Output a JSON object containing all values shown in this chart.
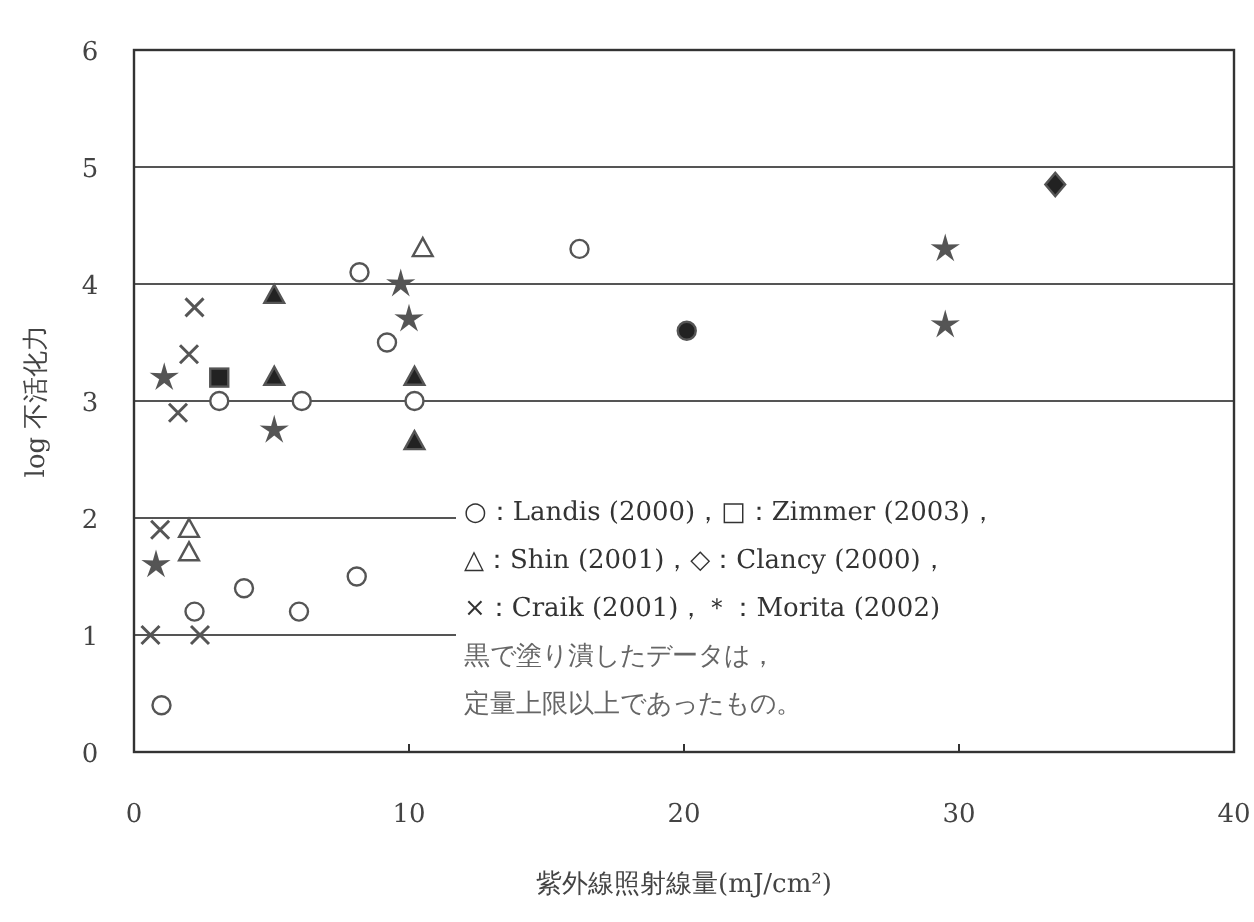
{
  "chart_data": {
    "type": "scatter",
    "xlabel": "紫外線照射線量(mJ/cm²)",
    "ylabel": "log 不活化力",
    "xlim": [
      0,
      40
    ],
    "xticks": [
      0,
      10,
      20,
      30,
      40
    ],
    "ylim": [
      0,
      6
    ],
    "yticks": [
      0,
      1,
      2,
      3,
      4,
      5,
      6
    ],
    "grid": "y",
    "series": [
      {
        "marker": "circle",
        "color": "#ffffff",
        "x": [
          1,
          4,
          6,
          8.1,
          2.2,
          3.1,
          6.1,
          8.2,
          9.2,
          10.2,
          16.2
        ],
        "values": [
          0.4,
          1.4,
          1.2,
          1.5,
          1.2,
          3.0,
          3.0,
          4.1,
          3.5,
          3.0,
          4.3
        ]
      },
      {
        "marker": "circle",
        "color": "#222222",
        "x": [
          20.1
        ],
        "values": [
          3.6
        ]
      },
      {
        "marker": "square",
        "color": "#222222",
        "x": [
          3.1
        ],
        "values": [
          3.2
        ]
      },
      {
        "marker": "triangle",
        "color": "#ffffff",
        "x": [
          2.0,
          2.0,
          10.5
        ],
        "values": [
          1.9,
          1.7,
          4.3
        ]
      },
      {
        "marker": "triangle",
        "color": "#222222",
        "x": [
          5.1,
          5.1,
          10.2,
          10.2
        ],
        "values": [
          3.9,
          3.2,
          3.2,
          2.65
        ]
      },
      {
        "marker": "diamond",
        "color": "#222222",
        "x": [
          33.5
        ],
        "values": [
          4.85
        ]
      },
      {
        "marker": "cross",
        "color": "#555555",
        "x": [
          2.2,
          2.0,
          1.6,
          0.95,
          0.6,
          2.4
        ],
        "values": [
          3.8,
          3.4,
          2.9,
          1.9,
          1.0,
          1.0
        ]
      },
      {
        "marker": "star",
        "color": "#555555",
        "x": [
          1.1,
          5.1,
          9.7,
          10.0,
          29.5,
          29.5,
          0.8
        ],
        "values": [
          3.2,
          2.75,
          4.0,
          3.7,
          4.3,
          3.65,
          1.6
        ]
      }
    ],
    "annotations": [
      "○：Landis (2000)，□：Zimmer (2003)，",
      "△：Shin (2001)，◇：Clancy (2000)，",
      "×：Craik (2001)，＊：Morita (2002)",
      "黒で塗り潰したデータは，",
      "定量上限以上であったもの。"
    ]
  }
}
